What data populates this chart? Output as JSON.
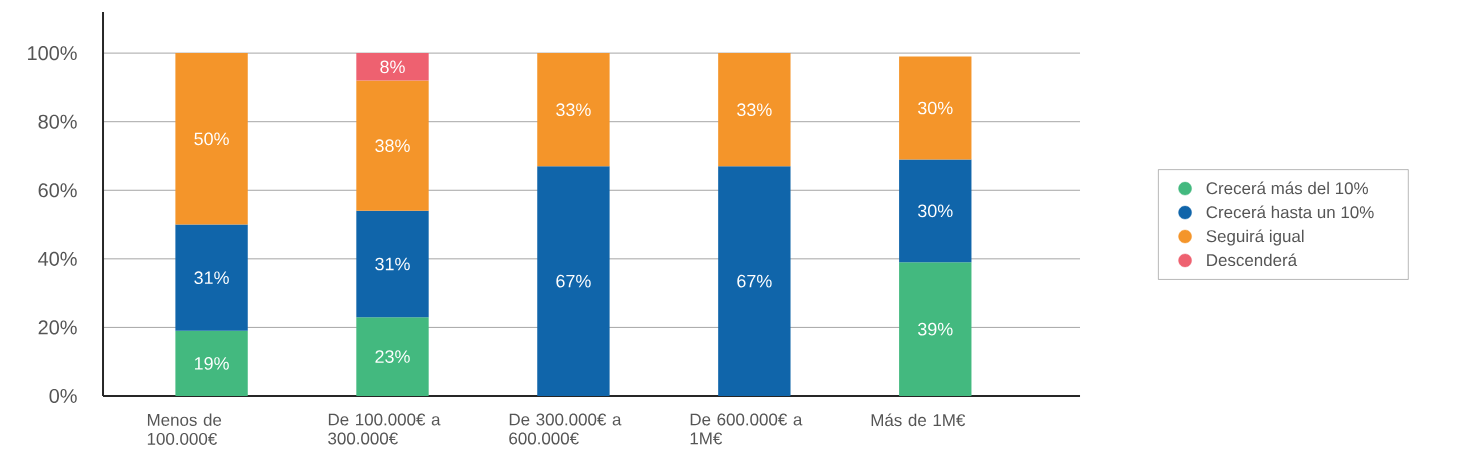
{
  "chart_data": {
    "type": "bar",
    "stacked": true,
    "categories": [
      "Menos de 100.000€",
      "De 100.000€ a 300.000€",
      "De 300.000€ a 600.000€",
      "De 600.000€ a 1M€",
      "Más de 1M€"
    ],
    "series": [
      {
        "name": "Crecerá más del 10%",
        "color": "#43b97f",
        "values": [
          19,
          23,
          null,
          null,
          39
        ],
        "value_labels": [
          "19%",
          "23%",
          null,
          null,
          "39%"
        ]
      },
      {
        "name": "Crecerá hasta un 10%",
        "color": "#1065aa",
        "values": [
          31,
          31,
          67,
          67,
          30
        ],
        "value_labels": [
          "31%",
          "31%",
          "67%",
          "67%",
          "30%"
        ]
      },
      {
        "name": "Seguirá igual",
        "color": "#f4952a",
        "values": [
          50,
          38,
          33,
          33,
          30
        ],
        "value_labels": [
          "50%",
          "38%",
          "33%",
          "33%",
          "30%"
        ]
      },
      {
        "name": "Descenderá",
        "color": "#ee6170",
        "values": [
          null,
          8,
          null,
          null,
          null
        ],
        "value_labels": [
          null,
          "8%",
          null,
          null,
          null
        ]
      }
    ],
    "ylim": [
      0,
      112
    ],
    "yticks": [
      {
        "value": 0,
        "label": "0%"
      },
      {
        "value": 20,
        "label": "20%"
      },
      {
        "value": 40,
        "label": "40%"
      },
      {
        "value": 60,
        "label": "60%"
      },
      {
        "value": 80,
        "label": "80%"
      },
      {
        "value": 100,
        "label": "100%"
      }
    ],
    "grid": "y",
    "legend": "right",
    "marker": "circle"
  }
}
